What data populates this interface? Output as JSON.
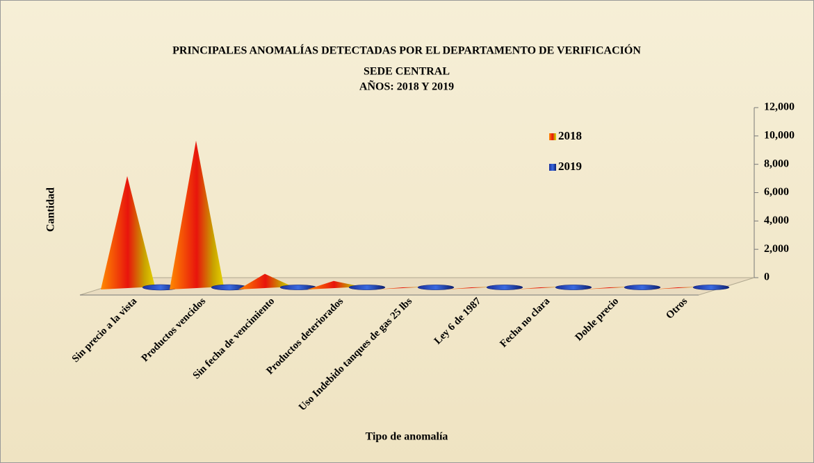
{
  "chart_data": {
    "type": "pyramid",
    "title": "PRINCIPALES ANOMALÍAS DETECTADAS POR EL DEPARTAMENTO DE VERIFICACIÓN",
    "subtitle": [
      "SEDE CENTRAL",
      "AÑOS: 2018 Y 2019"
    ],
    "x_label": "Tipo de anomalía",
    "y_label": "Cantidad",
    "categories": [
      "Sin precio a la vista",
      "Productos vencidos",
      "Sin fecha de vencimiento",
      "Productos deteriorados",
      "Uso Indebido tanques de gas 25 lbs",
      "Ley 6 de 1987",
      "Fecha no clara",
      "Doble precio",
      "Otros"
    ],
    "series": [
      {
        "name": "2018",
        "color": "#f07a10",
        "values": [
          8000,
          10500,
          1100,
          600,
          150,
          150,
          150,
          150,
          150
        ]
      },
      {
        "name": "2019",
        "color": "#1f3fb5",
        "values": [
          50,
          50,
          30,
          30,
          30,
          30,
          30,
          30,
          30
        ]
      }
    ],
    "ylim": [
      0,
      12000
    ],
    "yticks": [
      0,
      {
        "value": 2000,
        "label": "2,000"
      },
      {
        "value": 4000,
        "label": "4,000"
      },
      {
        "value": 6000,
        "label": "6,000"
      },
      {
        "value": 8000,
        "label": "8,000"
      },
      {
        "value": 10000,
        "label": "10,000"
      },
      {
        "value": 12000,
        "label": "12,000"
      }
    ],
    "legend": "upper-right"
  }
}
